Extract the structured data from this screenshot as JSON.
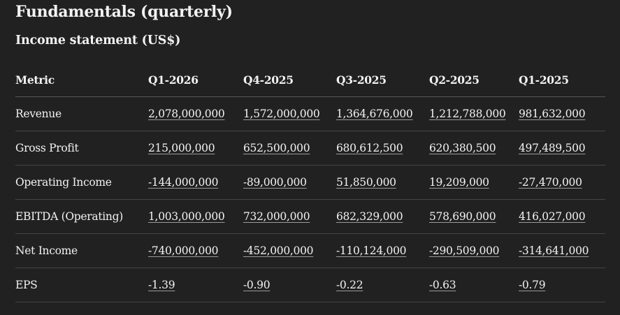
{
  "page_title": "Fundamentals (quarterly)",
  "section_title": "Income statement (US$)",
  "table": {
    "columns": [
      "Metric",
      "Q1-2026",
      "Q4-2025",
      "Q3-2025",
      "Q2-2025",
      "Q1-2025"
    ],
    "rows": [
      {
        "metric": "Revenue",
        "values": [
          "2,078,000,000",
          "1,572,000,000",
          "1,364,676,000",
          "1,212,788,000",
          "981,632,000"
        ]
      },
      {
        "metric": "Gross Profit",
        "values": [
          "215,000,000",
          "652,500,000",
          "680,612,500",
          "620,380,500",
          "497,489,500"
        ]
      },
      {
        "metric": "Operating Income",
        "values": [
          "-144,000,000",
          "-89,000,000",
          "51,850,000",
          "19,209,000",
          "-27,470,000"
        ]
      },
      {
        "metric": "EBITDA (Operating)",
        "values": [
          "1,003,000,000",
          "732,000,000",
          "682,329,000",
          "578,690,000",
          "416,027,000"
        ]
      },
      {
        "metric": "Net Income",
        "values": [
          "-740,000,000",
          "-452,000,000",
          "-110,124,000",
          "-290,509,000",
          "-314,641,000"
        ]
      },
      {
        "metric": "EPS",
        "values": [
          "-1.39",
          "-0.90",
          "-0.22",
          "-0.63",
          "-0.79"
        ]
      }
    ]
  },
  "colors": {
    "background": "#212121",
    "text": "#f2f2f2",
    "divider": "#454545"
  }
}
